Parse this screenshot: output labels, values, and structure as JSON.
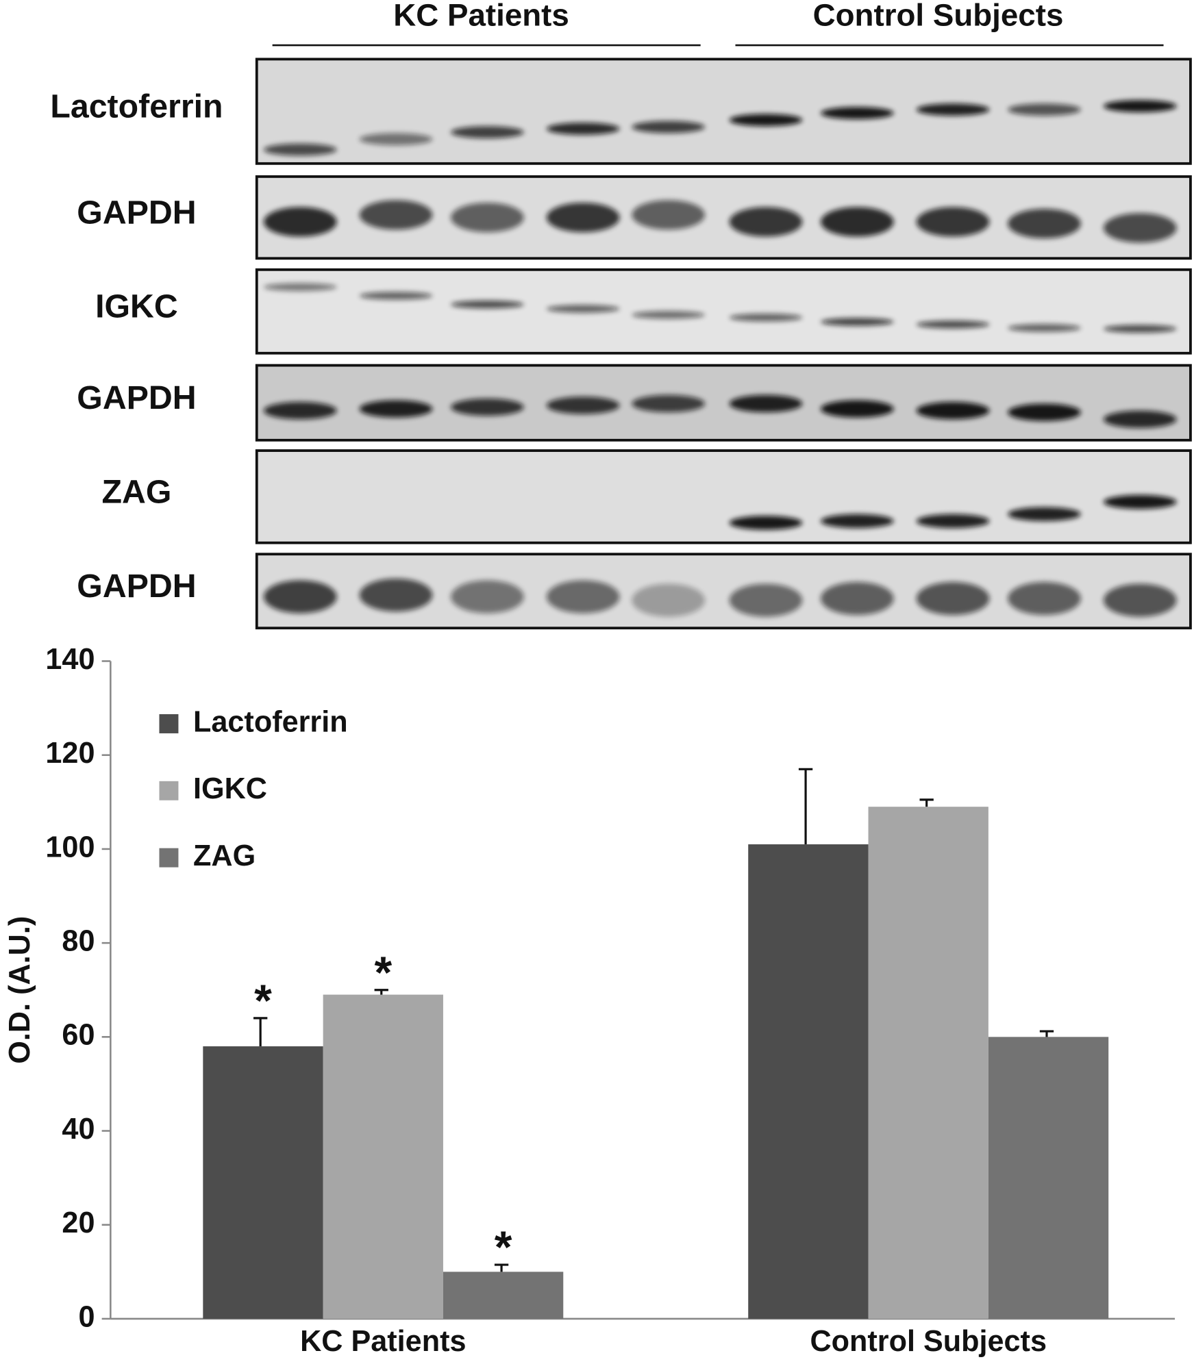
{
  "blot": {
    "groups": [
      "KC Patients",
      "Control Subjects"
    ],
    "rows": [
      "Lactoferrin",
      "GAPDH",
      "IGKC",
      "GAPDH",
      "ZAG",
      "GAPDH"
    ]
  },
  "chart_data": {
    "type": "bar",
    "ylabel": "O.D. (A.U.)",
    "categories": [
      "KC Patients",
      "Control Subjects"
    ],
    "series": [
      {
        "name": "Lactoferrin",
        "color": "#4d4d4d",
        "values": [
          58,
          101
        ],
        "errors": [
          6,
          16
        ],
        "annotations": [
          "*",
          null
        ]
      },
      {
        "name": "IGKC",
        "color": "#a6a6a6",
        "values": [
          69,
          109
        ],
        "errors": [
          1,
          1.5
        ],
        "annotations": [
          "*",
          null
        ]
      },
      {
        "name": "ZAG",
        "color": "#737373",
        "values": [
          10,
          60
        ],
        "errors": [
          1.5,
          1.2
        ],
        "annotations": [
          "*",
          null
        ]
      }
    ],
    "ylim": [
      0,
      140
    ],
    "yticks": [
      0,
      20,
      40,
      60,
      80,
      100,
      120,
      140
    ],
    "legend": "upper left"
  }
}
